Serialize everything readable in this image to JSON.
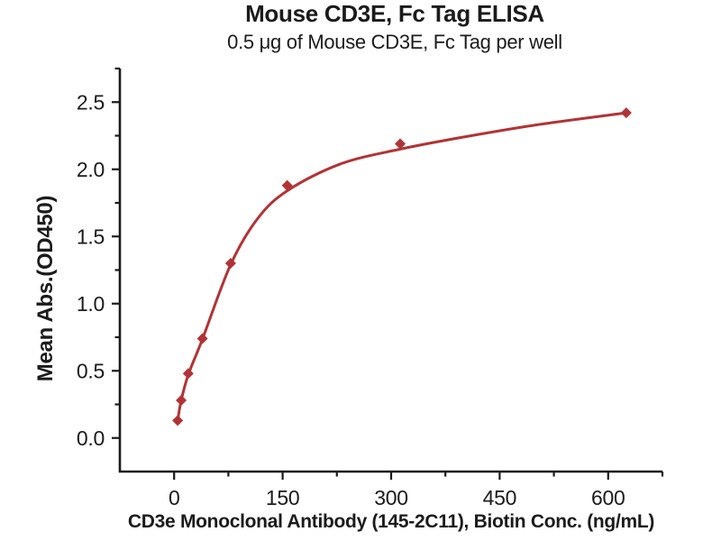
{
  "header": {
    "title": "Mouse CD3E, Fc Tag ELISA",
    "subtitle": "0.5 μg of Mouse CD3E, Fc Tag per well"
  },
  "chart_data": {
    "type": "scatter",
    "title": "Mouse CD3E, Fc Tag ELISA",
    "subtitle": "0.5 μg of Mouse CD3E, Fc Tag per well",
    "xlabel": "CD3e Monoclonal Antibody (145-2C11), Biotin Conc. (ng/mL)",
    "ylabel": "Mean Abs.(OD450)",
    "x": [
      4.9,
      9.8,
      19.5,
      39.1,
      78.1,
      156.3,
      312.5,
      625
    ],
    "y": [
      0.13,
      0.28,
      0.48,
      0.74,
      1.3,
      1.88,
      2.19,
      2.42
    ],
    "fit_curve": [
      [
        4.9,
        0.13
      ],
      [
        9.8,
        0.28
      ],
      [
        19.5,
        0.47
      ],
      [
        39.1,
        0.735
      ],
      [
        78.1,
        1.29
      ],
      [
        115,
        1.63
      ],
      [
        156.3,
        1.84
      ],
      [
        230,
        2.04
      ],
      [
        312.5,
        2.15
      ],
      [
        400,
        2.24
      ],
      [
        500,
        2.33
      ],
      [
        625,
        2.42
      ]
    ],
    "x_ticks_major": [
      "0",
      "150",
      "300",
      "450",
      "600"
    ],
    "x_ticks_minor": [
      75,
      225,
      375,
      525,
      675
    ],
    "y_ticks_major": [
      "0.0",
      "0.5",
      "1.0",
      "1.5",
      "2.0",
      "2.5"
    ],
    "y_ticks_minor": [
      0.25,
      0.75,
      1.25,
      1.75,
      2.25,
      2.75
    ],
    "xlim": [
      -75,
      675
    ],
    "ylim": [
      -0.25,
      2.75
    ],
    "grid": false,
    "legend": null,
    "marker": "diamond",
    "colors": {
      "series": "#b23335",
      "axis": "#1b1b1b",
      "text": "#1b1b1b",
      "background": "#ffffff"
    }
  }
}
